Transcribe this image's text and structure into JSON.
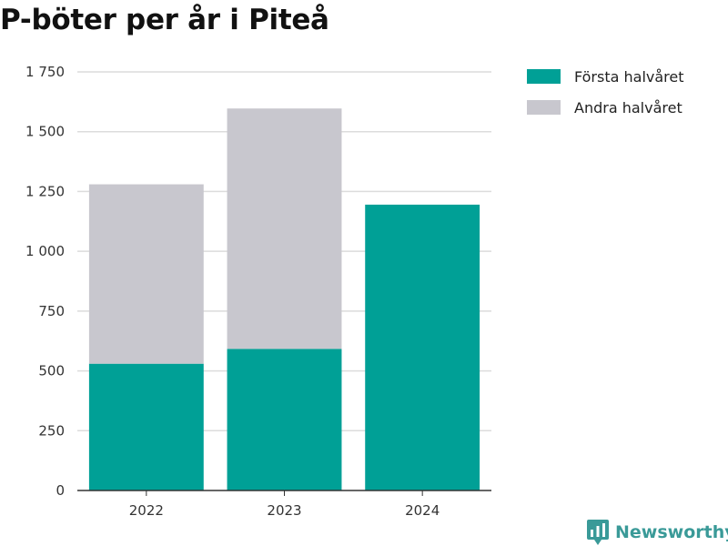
{
  "chart_data": {
    "type": "bar",
    "stacked": true,
    "title": "P-böter per år i Piteå",
    "categories": [
      "2022",
      "2023",
      "2024"
    ],
    "series": [
      {
        "name": "Första halvåret",
        "color": "#00a096",
        "values": [
          530,
          592,
          1195
        ]
      },
      {
        "name": "Andra halvåret",
        "color": "#c8c7ce",
        "values": [
          750,
          1005,
          0
        ]
      }
    ],
    "ylim": [
      0,
      1750
    ],
    "yticks": [
      0,
      250,
      500,
      750,
      1000,
      1250,
      1500,
      1750
    ],
    "ytick_labels": [
      "0",
      "250",
      "500",
      "750",
      "1 000",
      "1 250",
      "1 500",
      "1 750"
    ],
    "grid": true,
    "legend_position": "top-right",
    "xlabel": "",
    "ylabel": ""
  },
  "branding": {
    "text": "Newsworthy",
    "icon": "newsworthy-logo-icon",
    "color": "#3a9a98"
  }
}
